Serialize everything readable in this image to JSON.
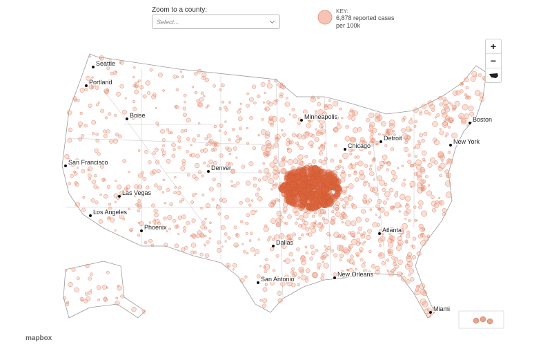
{
  "controls": {
    "zoom_label": "Zoom to a county:",
    "select_placeholder": "Select...",
    "zoom_in": "+",
    "zoom_out": "−"
  },
  "key": {
    "title": "KEY:",
    "lines": [
      "6,878 reported cases",
      "per 100k"
    ]
  },
  "cities": [
    "Seattle",
    "Portland",
    "Boise",
    "San Francisco",
    "Las Vegas",
    "Los Angeles",
    "Phoenix",
    "Denver",
    "Minneapolis",
    "Chicago",
    "Detroit",
    "Dallas",
    "San Antonio",
    "New Orleans",
    "Atlanta",
    "Miami",
    "Boston",
    "New York"
  ],
  "attribution": "mapbox"
}
